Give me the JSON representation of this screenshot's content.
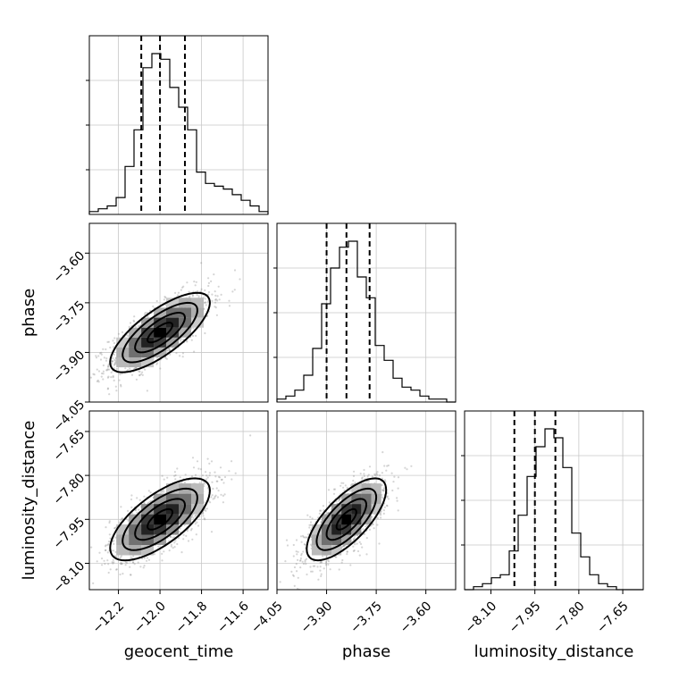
{
  "chart_data": {
    "type": "corner",
    "parameters": [
      {
        "name": "geocent_time",
        "range": [
          -12.34,
          -11.48
        ],
        "ticks": [
          -12.2,
          -12.0,
          -11.8,
          -11.6
        ],
        "tick_labels": [
          "−12.2",
          "−12.0",
          "−11.8",
          "−11.6"
        ],
        "quantiles": [
          -12.09,
          -12.0,
          -11.88
        ],
        "mean": -12.0,
        "sd": 0.12
      },
      {
        "name": "phase",
        "range": [
          -4.05,
          -3.51
        ],
        "ticks": [
          -4.05,
          -3.9,
          -3.75,
          -3.6
        ],
        "tick_labels": [
          "−4.05",
          "−3.90",
          "−3.75",
          "−3.60"
        ],
        "quantiles": [
          -3.9,
          -3.84,
          -3.77
        ],
        "mean": -3.84,
        "sd": 0.06
      },
      {
        "name": "luminosity_distance",
        "range": [
          -8.19,
          -7.58
        ],
        "ticks": [
          -8.1,
          -7.95,
          -7.8,
          -7.65
        ],
        "tick_labels": [
          "−8.10",
          "−7.95",
          "−7.80",
          "−7.65"
        ],
        "quantiles": [
          -8.02,
          -7.95,
          -7.88
        ],
        "mean": -7.95,
        "sd": 0.07
      }
    ],
    "histograms": [
      {
        "param": "geocent_time",
        "bins": [
          -12.34,
          -11.48
        ],
        "counts": [
          1,
          2,
          3,
          6,
          17,
          30,
          52,
          57,
          55,
          45,
          38,
          30,
          15,
          11,
          10,
          9,
          7,
          5,
          3,
          1
        ]
      },
      {
        "param": "phase",
        "bins": [
          -4.05,
          -3.51
        ],
        "counts": [
          1,
          2,
          4,
          9,
          18,
          33,
          45,
          52,
          54,
          42,
          35,
          19,
          14,
          8,
          5,
          4,
          2,
          1,
          1,
          0
        ]
      },
      {
        "param": "luminosity_distance",
        "bins": [
          -8.19,
          -7.58
        ],
        "counts": [
          0,
          1,
          2,
          4,
          5,
          13,
          25,
          38,
          48,
          54,
          51,
          41,
          19,
          11,
          5,
          2,
          1,
          0,
          0,
          0
        ]
      }
    ],
    "pairs": [
      {
        "x": "geocent_time",
        "y": "phase",
        "correlation": 0.75
      },
      {
        "x": "geocent_time",
        "y": "luminosity_distance",
        "correlation": 0.7
      },
      {
        "x": "phase",
        "y": "luminosity_distance",
        "correlation": 0.72
      }
    ],
    "contour_levels_sigma": [
      0.5,
      1.0,
      1.5,
      2.0
    ],
    "grid": true
  }
}
